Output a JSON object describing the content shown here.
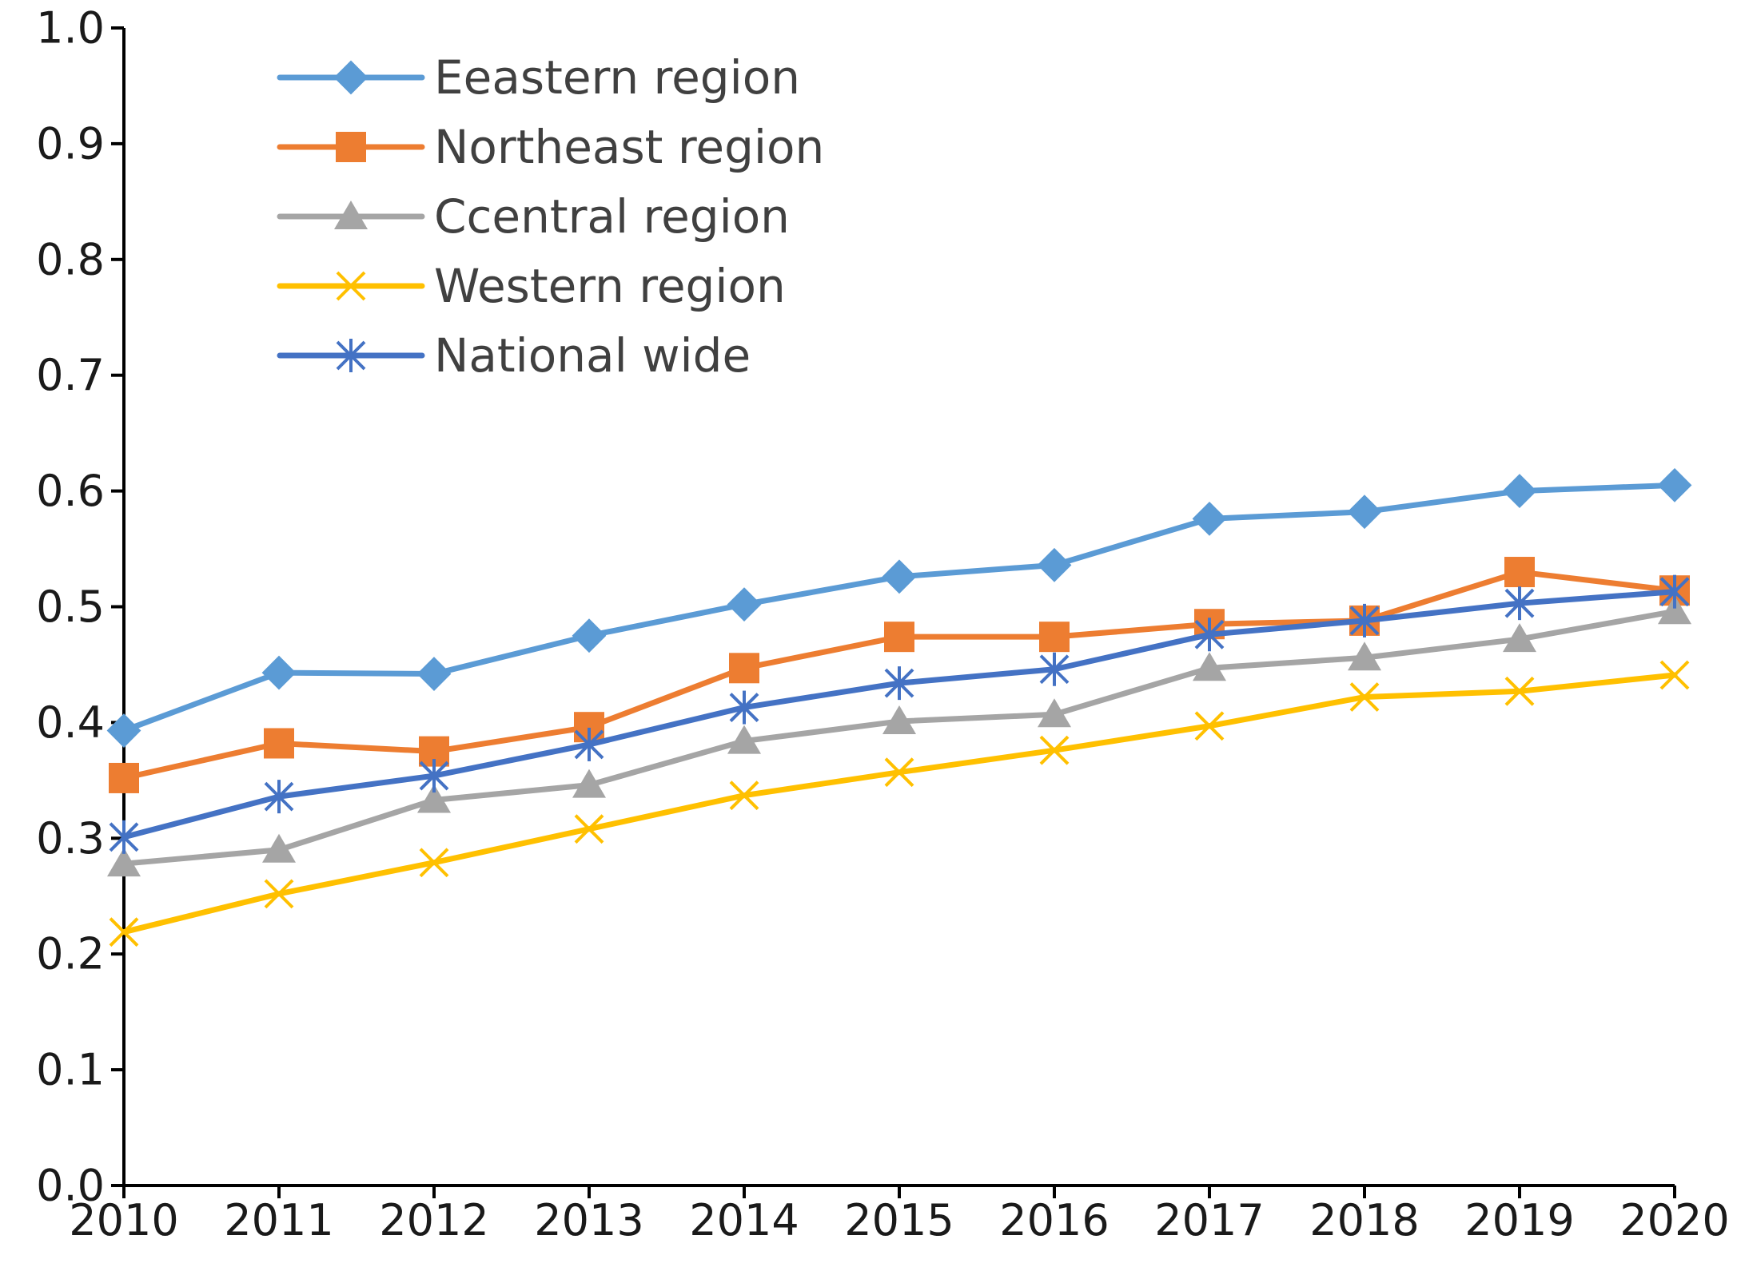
{
  "chart_data": {
    "type": "line",
    "title": "",
    "xlabel": "",
    "ylabel": "",
    "x": [
      "2010",
      "2011",
      "2012",
      "2013",
      "2014",
      "2015",
      "2016",
      "2017",
      "2018",
      "2019",
      "2020"
    ],
    "ylim": [
      0.0,
      1.0
    ],
    "yticks": [
      "0.0",
      "0.1",
      "0.2",
      "0.3",
      "0.4",
      "0.5",
      "0.6",
      "0.7",
      "0.8",
      "0.9",
      "1.0"
    ],
    "grid": false,
    "legend_position": "top-left",
    "series": [
      {
        "name": "Eeastern region",
        "color": "#5B9BD5",
        "marker": "diamond",
        "values": [
          0.393,
          0.443,
          0.442,
          0.475,
          0.502,
          0.526,
          0.536,
          0.576,
          0.582,
          0.6,
          0.605
        ]
      },
      {
        "name": "Northeast region",
        "color": "#ED7D31",
        "marker": "square",
        "values": [
          0.352,
          0.382,
          0.375,
          0.396,
          0.447,
          0.474,
          0.474,
          0.485,
          0.488,
          0.53,
          0.514
        ]
      },
      {
        "name": "Ccentral region",
        "color": "#A5A5A5",
        "marker": "triangle",
        "values": [
          0.278,
          0.29,
          0.333,
          0.346,
          0.384,
          0.401,
          0.407,
          0.447,
          0.456,
          0.472,
          0.496
        ]
      },
      {
        "name": "Western region",
        "color": "#FFC000",
        "marker": "x",
        "values": [
          0.219,
          0.252,
          0.279,
          0.308,
          0.337,
          0.357,
          0.376,
          0.397,
          0.422,
          0.427,
          0.441
        ]
      },
      {
        "name": "National wide",
        "color": "#4472C4",
        "marker": "asterisk",
        "values": [
          0.301,
          0.336,
          0.354,
          0.381,
          0.413,
          0.434,
          0.446,
          0.476,
          0.488,
          0.503,
          0.513
        ]
      }
    ]
  }
}
